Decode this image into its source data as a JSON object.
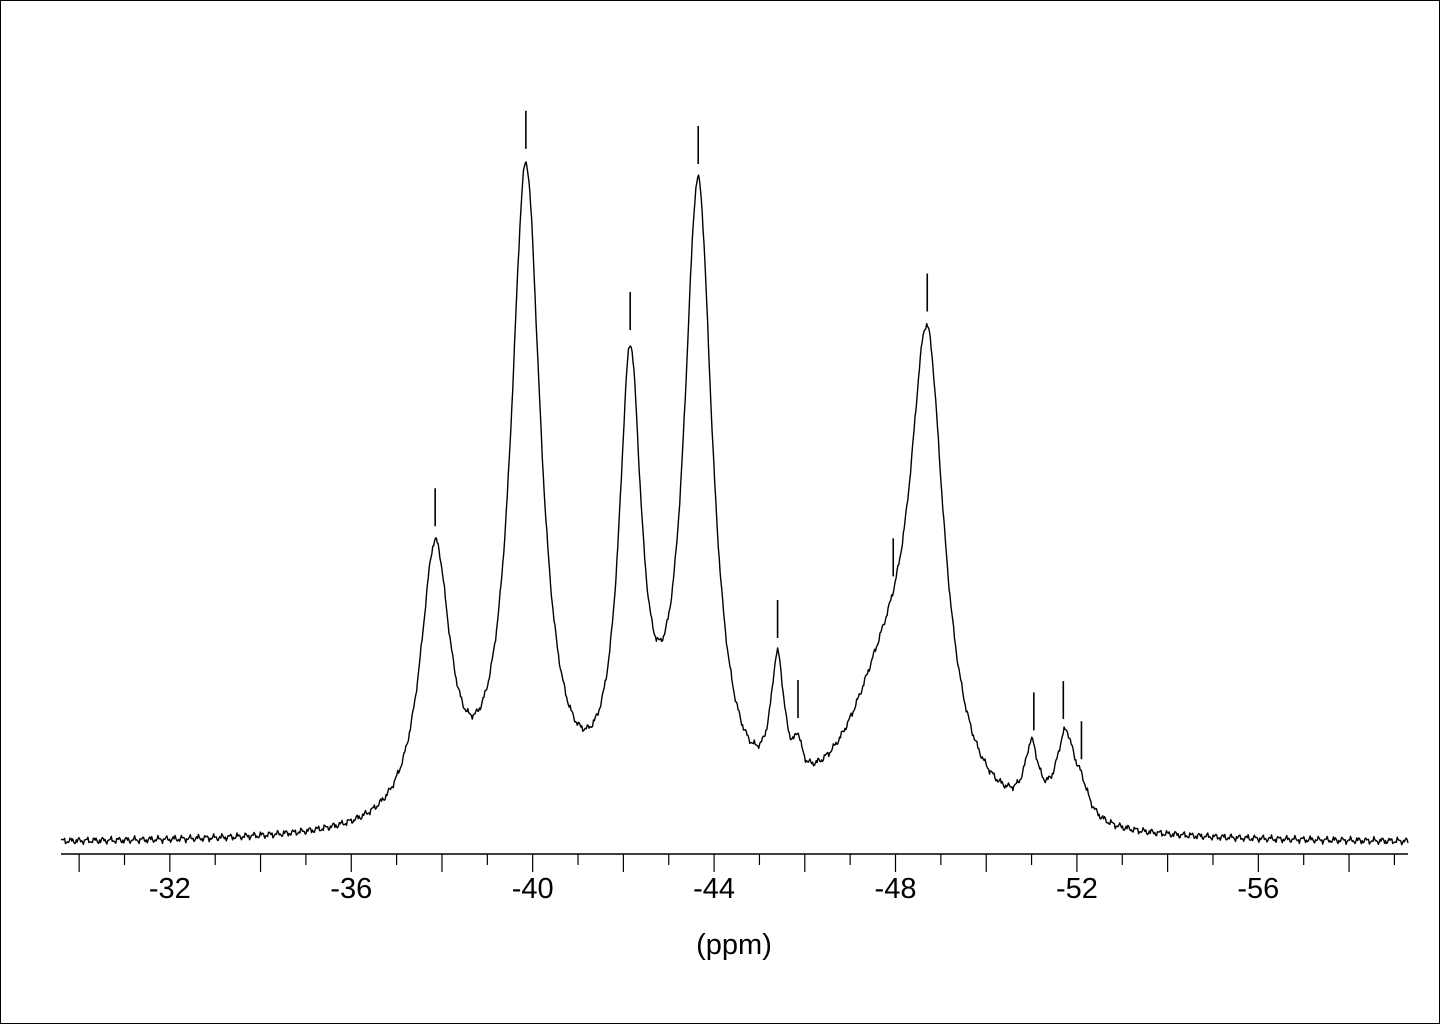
{
  "chart_data": {
    "type": "line",
    "title": "",
    "xlabel": "(ppm)",
    "ylabel": "",
    "xlim": [
      -29.6,
      -59.3
    ],
    "ylim": [
      0,
      100
    ],
    "x_reversed": true,
    "grid": false,
    "legend": "none",
    "line_color": "#000000",
    "tick_labels": [
      "-32",
      "-36",
      "-40",
      "-44",
      "-48",
      "-52",
      "-56"
    ],
    "major_ticks": [
      -30,
      -32,
      -34,
      -36,
      -38,
      -40,
      -42,
      -44,
      -46,
      -48,
      -50,
      -52,
      -54,
      -56,
      -58
    ],
    "minor_ticks": [
      -31,
      -33,
      -35,
      -37,
      -39,
      -41,
      -43,
      -45,
      -47,
      -49,
      -51,
      -53,
      -55,
      -57,
      -59
    ],
    "baseline": 0.3,
    "peaks": [
      {
        "center": -37.85,
        "height": 41.2,
        "width": 0.4
      },
      {
        "center": -39.85,
        "height": 99.2,
        "width": 0.4
      },
      {
        "center": -42.15,
        "height": 65.8,
        "width": 0.3
      },
      {
        "center": -43.65,
        "height": 95.3,
        "width": 0.38
      },
      {
        "center": -45.4,
        "height": 19.0,
        "width": 0.18
      },
      {
        "center": -45.85,
        "height": 4.5,
        "width": 0.1
      },
      {
        "center": -47.8,
        "height": 20.0,
        "width": 1.05
      },
      {
        "center": -48.7,
        "height": 66.0,
        "width": 0.45
      },
      {
        "center": -51.0,
        "height": 9.5,
        "width": 0.18
      },
      {
        "center": -51.75,
        "height": 12.8,
        "width": 0.25
      },
      {
        "center": -52.1,
        "height": 3.5,
        "width": 0.2
      }
    ],
    "peak_markers": [
      -37.85,
      -39.85,
      -42.15,
      -43.65,
      -45.4,
      -45.85,
      -47.95,
      -48.7,
      -51.05,
      -51.7,
      -52.1
    ]
  }
}
